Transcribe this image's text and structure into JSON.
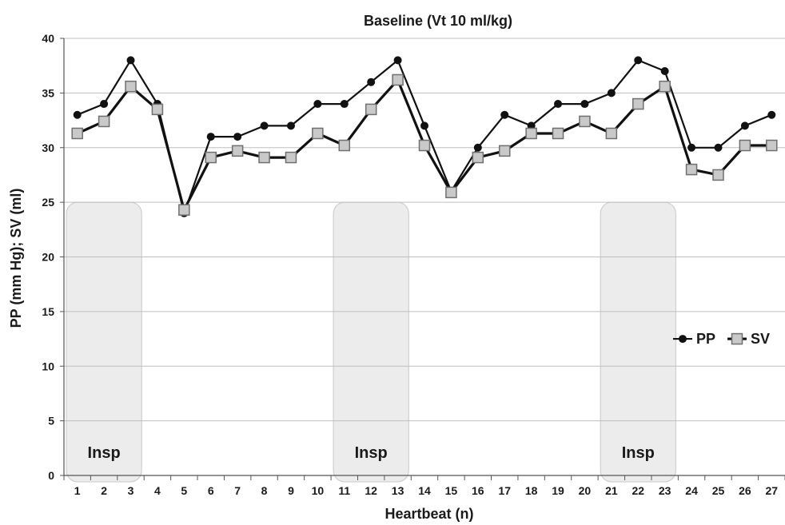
{
  "chart_data": {
    "type": "line",
    "title": "Baseline (Vt 10 ml/kg)",
    "xlabel": "Heartbeat (n)",
    "ylabel": "PP (mm Hg); SV (ml)",
    "ylim": [
      0,
      40
    ],
    "yticks": [
      0,
      5,
      10,
      15,
      20,
      25,
      30,
      35,
      40
    ],
    "grid": true,
    "legend_position": "right",
    "categories": [
      "1",
      "2",
      "3",
      "4",
      "5",
      "6",
      "7",
      "8",
      "9",
      "10",
      "11",
      "12",
      "13",
      "14",
      "15",
      "16",
      "17",
      "18",
      "19",
      "20",
      "21",
      "22",
      "23",
      "24",
      "25",
      "26",
      "27"
    ],
    "series": [
      {
        "name": "PP",
        "marker": "circle",
        "color": "#111111",
        "values": [
          33,
          34,
          38,
          34,
          24,
          31,
          31,
          32,
          32,
          34,
          34,
          36,
          38,
          32,
          26,
          30,
          33,
          32,
          34,
          34,
          35,
          38,
          37,
          30,
          30,
          32,
          33
        ]
      },
      {
        "name": "SV",
        "marker": "square",
        "color": "#111111",
        "fill": "#c9c9c9",
        "values": [
          31.3,
          32.4,
          35.6,
          33.5,
          24.3,
          29.1,
          29.7,
          29.1,
          29.1,
          31.3,
          30.2,
          33.5,
          36.2,
          30.2,
          25.9,
          29.1,
          29.7,
          31.3,
          31.3,
          32.4,
          31.3,
          34.0,
          35.6,
          28.0,
          27.5,
          30.2,
          30.2
        ]
      }
    ],
    "annotations": [
      {
        "label": "Insp",
        "from": 1,
        "to": 3
      },
      {
        "label": "Insp",
        "from": 11,
        "to": 13
      },
      {
        "label": "Insp",
        "from": 21,
        "to": 23
      }
    ],
    "annotation_ymax": 25,
    "colors": {
      "grid": "#bfbfbf",
      "axis": "#555555",
      "band_fill": "#ececec",
      "band_stroke": "#c8c8c8"
    }
  }
}
